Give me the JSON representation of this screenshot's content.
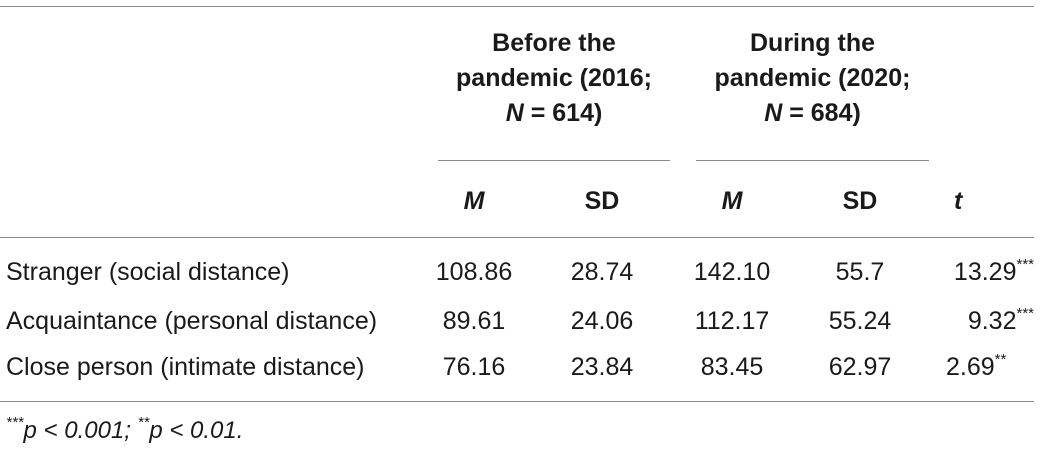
{
  "table": {
    "group_headers": [
      {
        "line1": "Before the",
        "line2": "pandemic (2016;",
        "n_label": "N",
        "n_value": " = 614)"
      },
      {
        "line1": "During the",
        "line2": "pandemic (2020;",
        "n_label": "N",
        "n_value": " = 684)"
      }
    ],
    "sub_headers": [
      "M",
      "SD",
      "M",
      "SD",
      "t"
    ],
    "rows": [
      {
        "label": "Stranger (social distance)",
        "m1": "108.86",
        "sd1": "28.74",
        "m2": "142.10",
        "sd2": "55.7",
        "t": "13.29",
        "sig": "***"
      },
      {
        "label": "Acquaintance (personal distance)",
        "m1": "89.61",
        "sd1": "24.06",
        "m2": "112.17",
        "sd2": "55.24",
        "t": "9.32",
        "sig": "***"
      },
      {
        "label": "Close person (intimate distance)",
        "m1": "76.16",
        "sd1": "23.84",
        "m2": "83.45",
        "sd2": "62.97",
        "t": "2.69",
        "sig": "**"
      }
    ],
    "footnote": {
      "sig1": "***",
      "p1": "p",
      "text1": " < 0.001; ",
      "sig2": "**",
      "p2": "p",
      "text2": " < 0.01."
    }
  }
}
